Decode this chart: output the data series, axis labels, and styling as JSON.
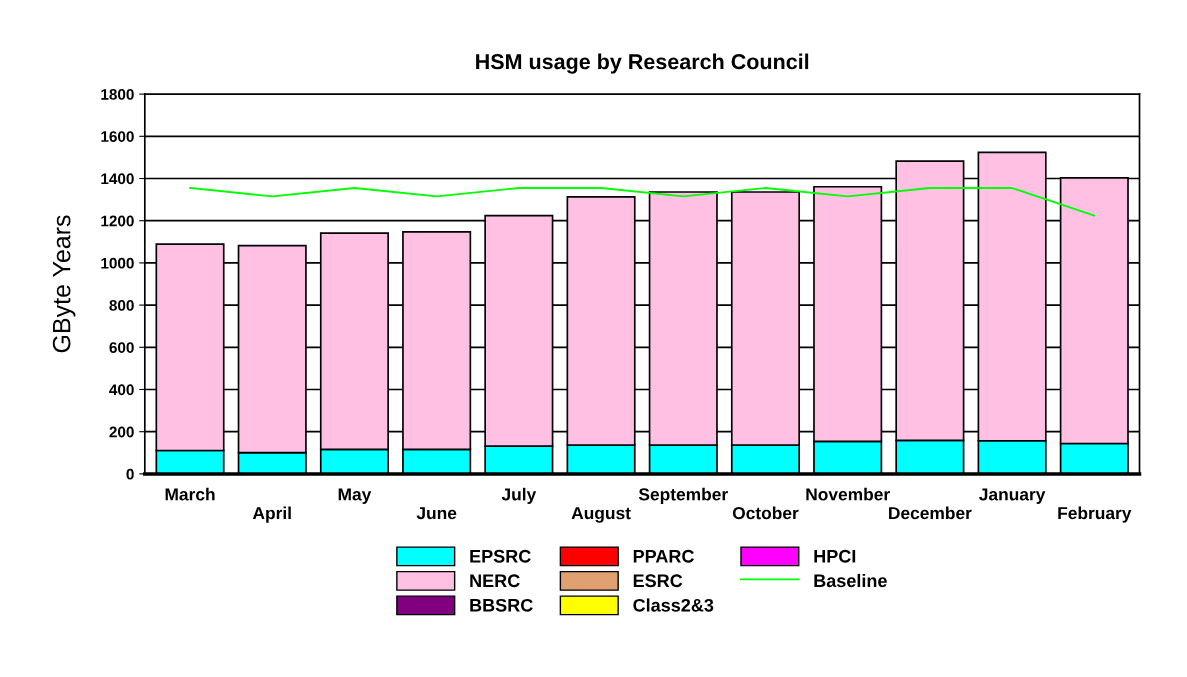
{
  "chart_data": {
    "type": "bar",
    "title": "HSM usage by Research Council",
    "ylabel": "GByte Years",
    "categories": [
      "March",
      "April",
      "May",
      "June",
      "July",
      "August",
      "September",
      "October",
      "November",
      "December",
      "January",
      "February"
    ],
    "stacked": true,
    "ylim": [
      0,
      1800
    ],
    "yticks": [
      0,
      200,
      400,
      600,
      800,
      1000,
      1200,
      1400,
      1600,
      1800
    ],
    "grid": "y",
    "legend": "bottom",
    "series": [
      {
        "name": "EPSRC",
        "color": "#00ffff",
        "values": [
          111,
          101,
          116,
          116,
          132,
          137,
          137,
          137,
          154,
          159,
          157,
          144
        ]
      },
      {
        "name": "NERC",
        "color": "#ffc0e4",
        "values": [
          978,
          981,
          1025,
          1031,
          1092,
          1176,
          1199,
          1199,
          1207,
          1323,
          1367,
          1259
        ]
      },
      {
        "name": "BBSRC",
        "color": "#800080",
        "values": [
          0,
          0,
          0,
          0,
          0,
          0,
          0,
          0,
          0,
          0,
          0,
          0
        ]
      },
      {
        "name": "PPARC",
        "color": "#ff0000",
        "values": [
          0,
          0,
          0,
          0,
          0,
          0,
          0,
          0,
          0,
          0,
          0,
          0
        ]
      },
      {
        "name": "ESRC",
        "color": "#e0a070",
        "values": [
          0,
          0,
          0,
          0,
          0,
          0,
          0,
          0,
          0,
          0,
          0,
          0
        ]
      },
      {
        "name": "Class2&3",
        "color": "#ffff00",
        "values": [
          0,
          0,
          0,
          0,
          0,
          0,
          0,
          0,
          0,
          0,
          0,
          0
        ]
      },
      {
        "name": "HPCI",
        "color": "#ff00ff",
        "values": [
          0,
          0,
          0,
          0,
          0,
          0,
          0,
          0,
          0,
          0,
          0,
          0
        ]
      },
      {
        "name": "Baseline",
        "type": "line",
        "color": "#00ff00",
        "values": [
          1355,
          1315,
          1355,
          1315,
          1355,
          1355,
          1315,
          1355,
          1315,
          1355,
          1355,
          1224
        ]
      }
    ]
  }
}
